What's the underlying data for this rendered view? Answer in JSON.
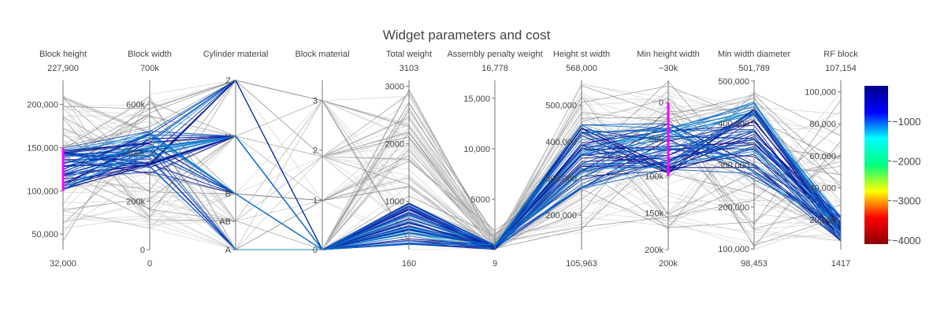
{
  "chart_data": {
    "type": "parallel_coordinates",
    "title": "Widget parameters and cost",
    "line_color_scale": "Jet (reversed)",
    "colorbar": {
      "ticks": [
        "−1000",
        "−2000",
        "−3000",
        "−4000"
      ],
      "tick_values": [
        -1000,
        -2000,
        -3000,
        -4000
      ],
      "range": [
        -4100,
        -100
      ],
      "stops": [
        "#00008b",
        "#0000ff",
        "#00ffff",
        "#00ff7f",
        "#ffff00",
        "#ff0000",
        "#8b0000"
      ]
    },
    "dimensions": [
      {
        "name": "Block height",
        "max_label": "227,900",
        "min_label": "32,000",
        "range": [
          32000,
          227900
        ],
        "ticks": [
          "50,000",
          "100,000",
          "150,000",
          "200,000"
        ],
        "tick_values": [
          50000,
          100000,
          150000,
          200000
        ],
        "constraint": [
          100000,
          150000
        ]
      },
      {
        "name": "Block width",
        "max_label": "700k",
        "min_label": "0",
        "range": [
          0,
          700000
        ],
        "ticks": [
          "0",
          "200k",
          "400k",
          "600k"
        ],
        "tick_values": [
          0,
          200000,
          400000,
          600000
        ]
      },
      {
        "name": "Cylinder material",
        "max_label": "",
        "min_label": "",
        "range": [
          0,
          3
        ],
        "ticks": [
          "A",
          "AB",
          "B",
          "Y",
          "Z"
        ],
        "tick_values": [
          0,
          0.5,
          1,
          2,
          3
        ]
      },
      {
        "name": "Block material",
        "max_label": "",
        "min_label": "",
        "range": [
          0,
          3.4
        ],
        "ticks": [
          "0",
          "1",
          "2",
          "3"
        ],
        "tick_values": [
          0,
          1,
          2,
          3
        ]
      },
      {
        "name": "Total weight",
        "max_label": "3103",
        "min_label": "160",
        "range": [
          160,
          3103
        ],
        "ticks": [
          "1000",
          "2000",
          "3000"
        ],
        "tick_values": [
          1000,
          2000,
          3000
        ]
      },
      {
        "name": "Assembly penalty weight",
        "max_label": "16,778",
        "min_label": "9",
        "range": [
          9,
          16778
        ],
        "ticks": [
          "5000",
          "10,000",
          "15,000"
        ],
        "tick_values": [
          5000,
          10000,
          15000
        ]
      },
      {
        "name": "Height st width",
        "max_label": "568,000",
        "min_label": "105,963",
        "range": [
          105963,
          568000
        ],
        "ticks": [
          "200,000",
          "300,000",
          "400,000",
          "500,000"
        ],
        "tick_values": [
          200000,
          300000,
          400000,
          500000
        ]
      },
      {
        "name": "Min height width",
        "max_label": "−30k",
        "min_label": "200k",
        "range": [
          200000,
          -30000
        ],
        "ticks": [
          "0",
          "50k",
          "100k",
          "150k",
          "200k"
        ],
        "tick_values": [
          0,
          50000,
          100000,
          150000,
          200000
        ],
        "constraint": [
          100000,
          0
        ]
      },
      {
        "name": "Min width diameter",
        "max_label": "501,789",
        "min_label": "98,453",
        "range": [
          98453,
          501789
        ],
        "ticks": [
          "100,000",
          "200,000",
          "300,000",
          "400,000",
          "500,000"
        ],
        "tick_values": [
          100000,
          200000,
          300000,
          400000,
          500000
        ]
      },
      {
        "name": "RF block",
        "max_label": "107,154",
        "min_label": "1417",
        "range": [
          1417,
          107154
        ],
        "ticks": [
          "20,000",
          "40,000",
          "60,000",
          "80,000",
          "100,000"
        ],
        "tick_values": [
          20000,
          40000,
          60000,
          80000,
          100000
        ]
      }
    ]
  }
}
